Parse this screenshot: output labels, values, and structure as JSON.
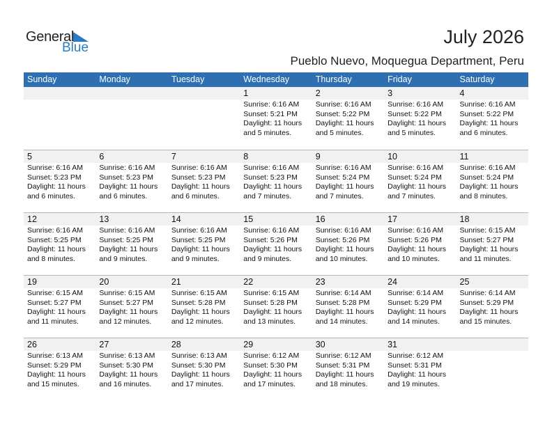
{
  "logo": {
    "line1": "General",
    "line2": "Blue",
    "accent": "#2a7bc4"
  },
  "title": "July 2026",
  "subtitle": "Pueblo Nuevo, Moquegua Department, Peru",
  "days": [
    "Sunday",
    "Monday",
    "Tuesday",
    "Wednesday",
    "Thursday",
    "Friday",
    "Saturday"
  ],
  "colors": {
    "header": "#2e6fb1",
    "day_band": "#f1f1f1"
  },
  "weeks": [
    [
      null,
      null,
      null,
      {
        "day": "1",
        "sunrise": "Sunrise: 6:16 AM",
        "sunset": "Sunset: 5:21 PM",
        "daylight": "Daylight: 11 hours",
        "minutes": "and 5 minutes."
      },
      {
        "day": "2",
        "sunrise": "Sunrise: 6:16 AM",
        "sunset": "Sunset: 5:22 PM",
        "daylight": "Daylight: 11 hours",
        "minutes": "and 5 minutes."
      },
      {
        "day": "3",
        "sunrise": "Sunrise: 6:16 AM",
        "sunset": "Sunset: 5:22 PM",
        "daylight": "Daylight: 11 hours",
        "minutes": "and 5 minutes."
      },
      {
        "day": "4",
        "sunrise": "Sunrise: 6:16 AM",
        "sunset": "Sunset: 5:22 PM",
        "daylight": "Daylight: 11 hours",
        "minutes": "and 6 minutes."
      }
    ],
    [
      {
        "day": "5",
        "sunrise": "Sunrise: 6:16 AM",
        "sunset": "Sunset: 5:23 PM",
        "daylight": "Daylight: 11 hours",
        "minutes": "and 6 minutes."
      },
      {
        "day": "6",
        "sunrise": "Sunrise: 6:16 AM",
        "sunset": "Sunset: 5:23 PM",
        "daylight": "Daylight: 11 hours",
        "minutes": "and 6 minutes."
      },
      {
        "day": "7",
        "sunrise": "Sunrise: 6:16 AM",
        "sunset": "Sunset: 5:23 PM",
        "daylight": "Daylight: 11 hours",
        "minutes": "and 6 minutes."
      },
      {
        "day": "8",
        "sunrise": "Sunrise: 6:16 AM",
        "sunset": "Sunset: 5:23 PM",
        "daylight": "Daylight: 11 hours",
        "minutes": "and 7 minutes."
      },
      {
        "day": "9",
        "sunrise": "Sunrise: 6:16 AM",
        "sunset": "Sunset: 5:24 PM",
        "daylight": "Daylight: 11 hours",
        "minutes": "and 7 minutes."
      },
      {
        "day": "10",
        "sunrise": "Sunrise: 6:16 AM",
        "sunset": "Sunset: 5:24 PM",
        "daylight": "Daylight: 11 hours",
        "minutes": "and 7 minutes."
      },
      {
        "day": "11",
        "sunrise": "Sunrise: 6:16 AM",
        "sunset": "Sunset: 5:24 PM",
        "daylight": "Daylight: 11 hours",
        "minutes": "and 8 minutes."
      }
    ],
    [
      {
        "day": "12",
        "sunrise": "Sunrise: 6:16 AM",
        "sunset": "Sunset: 5:25 PM",
        "daylight": "Daylight: 11 hours",
        "minutes": "and 8 minutes."
      },
      {
        "day": "13",
        "sunrise": "Sunrise: 6:16 AM",
        "sunset": "Sunset: 5:25 PM",
        "daylight": "Daylight: 11 hours",
        "minutes": "and 9 minutes."
      },
      {
        "day": "14",
        "sunrise": "Sunrise: 6:16 AM",
        "sunset": "Sunset: 5:25 PM",
        "daylight": "Daylight: 11 hours",
        "minutes": "and 9 minutes."
      },
      {
        "day": "15",
        "sunrise": "Sunrise: 6:16 AM",
        "sunset": "Sunset: 5:26 PM",
        "daylight": "Daylight: 11 hours",
        "minutes": "and 9 minutes."
      },
      {
        "day": "16",
        "sunrise": "Sunrise: 6:16 AM",
        "sunset": "Sunset: 5:26 PM",
        "daylight": "Daylight: 11 hours",
        "minutes": "and 10 minutes."
      },
      {
        "day": "17",
        "sunrise": "Sunrise: 6:16 AM",
        "sunset": "Sunset: 5:26 PM",
        "daylight": "Daylight: 11 hours",
        "minutes": "and 10 minutes."
      },
      {
        "day": "18",
        "sunrise": "Sunrise: 6:15 AM",
        "sunset": "Sunset: 5:27 PM",
        "daylight": "Daylight: 11 hours",
        "minutes": "and 11 minutes."
      }
    ],
    [
      {
        "day": "19",
        "sunrise": "Sunrise: 6:15 AM",
        "sunset": "Sunset: 5:27 PM",
        "daylight": "Daylight: 11 hours",
        "minutes": "and 11 minutes."
      },
      {
        "day": "20",
        "sunrise": "Sunrise: 6:15 AM",
        "sunset": "Sunset: 5:27 PM",
        "daylight": "Daylight: 11 hours",
        "minutes": "and 12 minutes."
      },
      {
        "day": "21",
        "sunrise": "Sunrise: 6:15 AM",
        "sunset": "Sunset: 5:28 PM",
        "daylight": "Daylight: 11 hours",
        "minutes": "and 12 minutes."
      },
      {
        "day": "22",
        "sunrise": "Sunrise: 6:15 AM",
        "sunset": "Sunset: 5:28 PM",
        "daylight": "Daylight: 11 hours",
        "minutes": "and 13 minutes."
      },
      {
        "day": "23",
        "sunrise": "Sunrise: 6:14 AM",
        "sunset": "Sunset: 5:28 PM",
        "daylight": "Daylight: 11 hours",
        "minutes": "and 14 minutes."
      },
      {
        "day": "24",
        "sunrise": "Sunrise: 6:14 AM",
        "sunset": "Sunset: 5:29 PM",
        "daylight": "Daylight: 11 hours",
        "minutes": "and 14 minutes."
      },
      {
        "day": "25",
        "sunrise": "Sunrise: 6:14 AM",
        "sunset": "Sunset: 5:29 PM",
        "daylight": "Daylight: 11 hours",
        "minutes": "and 15 minutes."
      }
    ],
    [
      {
        "day": "26",
        "sunrise": "Sunrise: 6:13 AM",
        "sunset": "Sunset: 5:29 PM",
        "daylight": "Daylight: 11 hours",
        "minutes": "and 15 minutes."
      },
      {
        "day": "27",
        "sunrise": "Sunrise: 6:13 AM",
        "sunset": "Sunset: 5:30 PM",
        "daylight": "Daylight: 11 hours",
        "minutes": "and 16 minutes."
      },
      {
        "day": "28",
        "sunrise": "Sunrise: 6:13 AM",
        "sunset": "Sunset: 5:30 PM",
        "daylight": "Daylight: 11 hours",
        "minutes": "and 17 minutes."
      },
      {
        "day": "29",
        "sunrise": "Sunrise: 6:12 AM",
        "sunset": "Sunset: 5:30 PM",
        "daylight": "Daylight: 11 hours",
        "minutes": "and 17 minutes."
      },
      {
        "day": "30",
        "sunrise": "Sunrise: 6:12 AM",
        "sunset": "Sunset: 5:31 PM",
        "daylight": "Daylight: 11 hours",
        "minutes": "and 18 minutes."
      },
      {
        "day": "31",
        "sunrise": "Sunrise: 6:12 AM",
        "sunset": "Sunset: 5:31 PM",
        "daylight": "Daylight: 11 hours",
        "minutes": "and 19 minutes."
      },
      null
    ]
  ]
}
